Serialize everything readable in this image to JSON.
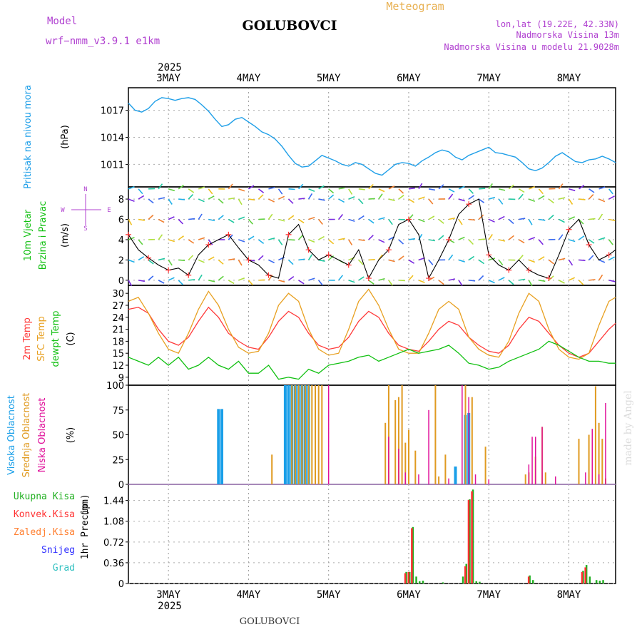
{
  "header": {
    "model_label": "Model",
    "model_name": "wrf−nmm_v3.9.1  e1km",
    "station": "GOLUBOVCI",
    "title": "Meteogram",
    "lonlat": "lon,lat (19.22E, 42.33N)",
    "elevation": "Nadmorska Visina 13m",
    "model_elevation": "Nadmorska Visina u modelu 21.9028m",
    "footer_station": "GOLUBOVCI",
    "watermark": "made by Angel"
  },
  "time_axis": {
    "year": "2025",
    "day_labels": [
      "3MAY",
      "4MAY",
      "5MAY",
      "6MAY",
      "7MAY",
      "8MAY"
    ],
    "day_positions_hours": [
      12,
      36,
      60,
      84,
      108,
      132
    ],
    "range_hours": [
      0,
      146
    ]
  },
  "legend_colors": {
    "pressure": "#1f9fe8",
    "wind_speed": "#000000",
    "wind_dir_marker": "#ff3030",
    "temp2m": "#ff3a3a",
    "sfc_temp": "#e8a020",
    "dewpoint": "#10c010",
    "cloud_high": "#1a9fe8",
    "cloud_mid": "#e09a20",
    "cloud_low": "#e0109a",
    "precip_total": "#22b022",
    "precip_conv": "#ff3030",
    "precip_frz": "#ff7f30",
    "snow": "#3030ff",
    "hail": "#30c0c0"
  },
  "chart_data": [
    {
      "type": "line",
      "panel": "pressure",
      "ylabel_main": "Pritisak na nivou mora",
      "ylabel_unit": "(hPa)",
      "yticks": [
        "1017",
        "1014",
        "1011"
      ],
      "ylim": [
        1008.5,
        1019.5
      ],
      "x_hours": [
        0,
        2,
        4,
        6,
        8,
        10,
        12,
        14,
        16,
        18,
        20,
        22,
        24,
        26,
        28,
        30,
        32,
        34,
        36,
        38,
        40,
        42,
        44,
        46,
        48,
        50,
        52,
        54,
        56,
        58,
        60,
        62,
        64,
        66,
        68,
        70,
        72,
        74,
        76,
        78,
        80,
        82,
        84,
        86,
        88,
        90,
        92,
        94,
        96,
        98,
        100,
        102,
        104,
        106,
        108,
        110,
        112,
        114,
        116,
        118,
        120,
        122,
        124,
        126,
        128,
        130,
        132,
        134,
        136,
        138,
        140,
        142,
        144,
        146
      ],
      "values": [
        1017.8,
        1017.0,
        1016.8,
        1017.2,
        1018.0,
        1018.4,
        1018.3,
        1018.1,
        1018.3,
        1018.4,
        1018.2,
        1017.6,
        1016.9,
        1016.0,
        1015.2,
        1015.4,
        1016.0,
        1016.2,
        1015.7,
        1015.2,
        1014.6,
        1014.3,
        1013.8,
        1013.0,
        1012.0,
        1011.1,
        1010.7,
        1010.8,
        1011.4,
        1012.0,
        1011.7,
        1011.4,
        1011.0,
        1010.8,
        1011.2,
        1011.0,
        1010.5,
        1010.0,
        1009.8,
        1010.4,
        1011.0,
        1011.2,
        1011.1,
        1010.8,
        1011.4,
        1011.8,
        1012.3,
        1012.6,
        1012.4,
        1011.8,
        1011.5,
        1012.0,
        1012.3,
        1012.6,
        1012.9,
        1012.3,
        1012.2,
        1012.0,
        1011.8,
        1011.2,
        1010.5,
        1010.3,
        1010.6,
        1011.2,
        1011.9,
        1012.3,
        1011.8,
        1011.3,
        1011.2,
        1011.5,
        1011.6,
        1011.9,
        1011.6,
        1011.2
      ]
    },
    {
      "type": "line",
      "panel": "wind",
      "ylabel_main": "10m Vjetar",
      "ylabel_sub": "Brzina i Pravac",
      "ylabel_unit": "(m/s)",
      "compass": {
        "n": "N",
        "s": "S",
        "e": "E",
        "w": "W"
      },
      "yticks": [
        "8",
        "6",
        "4",
        "2",
        "0"
      ],
      "ylim": [
        -0.5,
        9.2
      ],
      "x_hours": [
        0,
        3,
        6,
        9,
        12,
        15,
        18,
        21,
        24,
        27,
        30,
        33,
        36,
        39,
        42,
        45,
        48,
        51,
        54,
        57,
        60,
        63,
        66,
        69,
        72,
        75,
        78,
        81,
        84,
        87,
        90,
        93,
        96,
        99,
        102,
        105,
        108,
        111,
        114,
        117,
        120,
        123,
        126,
        129,
        132,
        135,
        138,
        141,
        144,
        146
      ],
      "values": [
        4.5,
        3.0,
        2.2,
        1.5,
        1.0,
        1.2,
        0.5,
        2.5,
        3.5,
        4.0,
        4.5,
        3.2,
        2.0,
        1.5,
        0.5,
        0.2,
        4.5,
        5.5,
        3.0,
        2.0,
        2.5,
        2.0,
        1.5,
        3.0,
        0.2,
        2.0,
        3.0,
        5.5,
        6.0,
        4.5,
        0.2,
        2.0,
        4.0,
        6.5,
        7.5,
        8.0,
        2.5,
        1.5,
        1.0,
        2.0,
        1.0,
        0.5,
        0.2,
        2.5,
        5.0,
        6.0,
        3.5,
        2.0,
        2.5,
        3.0
      ]
    },
    {
      "type": "line",
      "panel": "temperature",
      "ylabel_main": "2m Temp",
      "ylabel_sub": "SFC Temp",
      "ylabel_sub2": "dewpt Temp",
      "ylabel_unit": "(C)",
      "yticks": [
        "30",
        "27",
        "24",
        "21",
        "18",
        "15",
        "12",
        "9"
      ],
      "ylim": [
        7,
        32
      ],
      "x_hours": [
        0,
        3,
        6,
        9,
        12,
        15,
        18,
        21,
        24,
        27,
        30,
        33,
        36,
        39,
        42,
        45,
        48,
        51,
        54,
        57,
        60,
        63,
        66,
        69,
        72,
        75,
        78,
        81,
        84,
        87,
        90,
        93,
        96,
        99,
        102,
        105,
        108,
        111,
        114,
        117,
        120,
        123,
        126,
        129,
        132,
        135,
        138,
        141,
        144,
        146
      ],
      "series": [
        {
          "name": "2m Temp",
          "values": [
            26,
            26.5,
            25,
            21,
            18,
            17,
            19,
            23,
            26.5,
            24,
            20,
            18,
            16.5,
            16,
            19,
            23,
            25.5,
            24,
            20,
            17,
            16,
            16.5,
            19,
            23,
            25.5,
            24,
            20,
            17,
            16,
            15.5,
            18,
            21,
            23,
            22,
            19,
            17,
            15.5,
            15,
            17,
            21,
            24,
            23,
            20,
            17,
            15,
            14,
            15,
            18,
            21,
            22.5
          ]
        },
        {
          "name": "SFC Temp",
          "values": [
            28,
            29,
            25,
            20,
            16,
            15,
            20,
            26,
            30.5,
            27,
            21,
            16.5,
            15,
            15.5,
            20,
            27,
            30,
            28,
            21,
            16,
            14.5,
            15,
            21,
            28,
            31,
            27,
            21,
            16,
            15,
            15,
            20,
            26,
            28,
            26,
            19,
            16,
            14.5,
            14,
            18,
            25,
            30,
            28,
            21,
            16,
            14,
            13.5,
            15,
            22,
            28,
            29
          ]
        },
        {
          "name": "dewpt Temp",
          "values": [
            14,
            13,
            12,
            14,
            12,
            14,
            11,
            12,
            14,
            12,
            11,
            13,
            10,
            10,
            12,
            8.5,
            9,
            8.5,
            11,
            10,
            12,
            12.5,
            13,
            14,
            14.5,
            13,
            14,
            15,
            16,
            15,
            15.5,
            16,
            17,
            15,
            12.5,
            12,
            11,
            11.5,
            13,
            14,
            15,
            16,
            18,
            17,
            15.5,
            14,
            13,
            13,
            12.5,
            12.5
          ]
        }
      ]
    },
    {
      "type": "bar",
      "panel": "clouds",
      "ylabel_high": "Visoka Oblacnost",
      "ylabel_mid": "Srednja Oblacnost",
      "ylabel_low": "Niska Oblacnost",
      "ylabel_unit": "(%)",
      "yticks": [
        "100",
        "75",
        "50",
        "25",
        "0"
      ],
      "ylim": [
        0,
        100
      ],
      "series": [
        {
          "name": "Visoka Oblacnost",
          "x_hours": [
            27,
            28,
            47,
            48,
            49,
            50,
            51,
            52,
            53,
            54,
            98,
            101,
            102
          ],
          "values": [
            76,
            76,
            100,
            100,
            100,
            100,
            100,
            100,
            100,
            100,
            18,
            70,
            72
          ]
        },
        {
          "name": "Srednja Oblacnost",
          "x_hours": [
            43,
            49,
            50,
            51,
            52,
            53,
            54,
            55,
            56,
            57,
            58,
            77,
            78,
            80,
            81,
            82,
            83,
            84,
            86,
            92,
            93,
            95,
            101,
            103,
            107,
            119,
            120,
            122,
            124,
            125,
            135,
            138,
            140,
            141,
            142,
            143
          ],
          "values": [
            30,
            100,
            100,
            100,
            100,
            100,
            100,
            100,
            100,
            100,
            100,
            62,
            100,
            85,
            88,
            100,
            42,
            55,
            34,
            100,
            8,
            30,
            100,
            88,
            38,
            10,
            12,
            28,
            58,
            12,
            46,
            50,
            99,
            62,
            46,
            6
          ]
        },
        {
          "name": "Niska Oblacnost",
          "x_hours": [
            60,
            78,
            81,
            83,
            87,
            90,
            96,
            100,
            102,
            104,
            108,
            120,
            121,
            122,
            124,
            128,
            137,
            139,
            141,
            143
          ],
          "values": [
            100,
            48,
            36,
            12,
            10,
            75,
            6,
            100,
            88,
            10,
            5,
            20,
            48,
            48,
            58,
            8,
            12,
            56,
            10,
            82
          ]
        }
      ]
    },
    {
      "type": "bar",
      "panel": "precip",
      "ylabel_label": "1hr Precip",
      "ylabel_unit": "(mm)",
      "legend": [
        "Ukupna Kisa",
        "Konvek.Kisa",
        "Zaledj.Kisa",
        "Snijeg",
        "Grad"
      ],
      "yticks": [
        "1.44",
        "1.08",
        "0.72",
        "0.36",
        "0"
      ],
      "ylim": [
        0,
        1.72
      ],
      "series": [
        {
          "name": "Ukupna Kisa",
          "x_hours": [
            83,
            84,
            85,
            86,
            87,
            88,
            94,
            100,
            101,
            102,
            103,
            104,
            105,
            120,
            121,
            136,
            137,
            138,
            140,
            141,
            142
          ],
          "values": [
            0.2,
            0.2,
            0.98,
            0.12,
            0.04,
            0.05,
            0.02,
            0.12,
            0.34,
            1.46,
            1.63,
            0.04,
            0.03,
            0.14,
            0.06,
            0.22,
            0.32,
            0.12,
            0.06,
            0.05,
            0.06
          ]
        },
        {
          "name": "Konvek.Kisa",
          "x_hours": [
            83,
            84,
            85,
            101,
            102,
            103,
            120,
            136,
            137
          ],
          "values": [
            0.18,
            0.2,
            0.96,
            0.3,
            1.45,
            1.6,
            0.12,
            0.2,
            0.28
          ]
        }
      ]
    }
  ]
}
